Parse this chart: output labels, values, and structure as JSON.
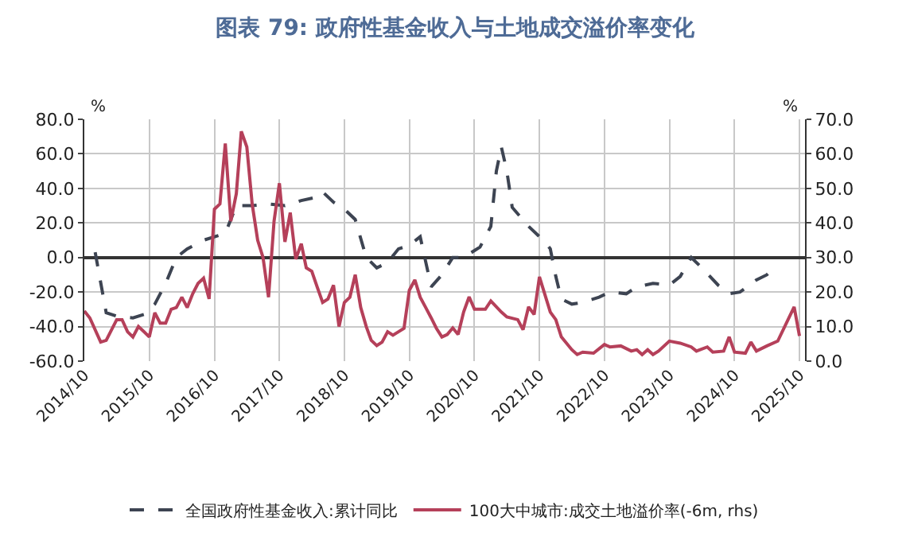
{
  "chart_data": {
    "type": "line",
    "title": "图表 79: 政府性基金收入与土地成交溢价率变化",
    "ylabel": "%",
    "y2label": "%",
    "xlim": [
      "2014-10",
      "2025-11"
    ],
    "xticks": [
      {
        "value": "2014-10",
        "label": "2014/10"
      },
      {
        "value": "2015-10",
        "label": "2015/10"
      },
      {
        "value": "2016-10",
        "label": "2016/10"
      },
      {
        "value": "2017-10",
        "label": "2017/10"
      },
      {
        "value": "2018-10",
        "label": "2018/10"
      },
      {
        "value": "2019-10",
        "label": "2019/10"
      },
      {
        "value": "2020-10",
        "label": "2020/10"
      },
      {
        "value": "2021-10",
        "label": "2021/10"
      },
      {
        "value": "2022-10",
        "label": "2022/10"
      },
      {
        "value": "2023-10",
        "label": "2023/10"
      },
      {
        "value": "2024-10",
        "label": "2024/10"
      },
      {
        "value": "2025-10",
        "label": "2025/10"
      }
    ],
    "ylim": [
      -60,
      80
    ],
    "yticks": [
      {
        "value": -60,
        "label": "-60.0"
      },
      {
        "value": -40,
        "label": "-40.0"
      },
      {
        "value": -20,
        "label": "-20.0"
      },
      {
        "value": 0,
        "label": "0.0"
      },
      {
        "value": 20,
        "label": "20.0"
      },
      {
        "value": 40,
        "label": "40.0"
      },
      {
        "value": 60,
        "label": "60.0"
      },
      {
        "value": 80,
        "label": "80.0"
      }
    ],
    "y2lim": [
      0,
      70
    ],
    "y2ticks": [
      {
        "value": 0,
        "label": "0.0"
      },
      {
        "value": 10,
        "label": "10.0"
      },
      {
        "value": 20,
        "label": "20.0"
      },
      {
        "value": 30,
        "label": "30.0"
      },
      {
        "value": 40,
        "label": "40.0"
      },
      {
        "value": 50,
        "label": "50.0"
      },
      {
        "value": 60,
        "label": "60.0"
      },
      {
        "value": 70,
        "label": "70.0"
      }
    ],
    "grid": true,
    "legend": "bottom",
    "series": [
      {
        "name": "全国政府性基金收入:累计同比",
        "color": "#3d4452",
        "line_style": "dashed",
        "x": [
          "2014-12",
          "2015-02",
          "2015-04",
          "2015-07",
          "2015-09",
          "2015-11",
          "2016-01",
          "2016-03",
          "2016-05",
          "2016-08",
          "2016-12",
          "2017-02",
          "2017-05",
          "2017-08",
          "2017-11",
          "2018-02",
          "2018-05",
          "2018-06",
          "2018-08",
          "2018-10",
          "2018-12",
          "2019-02",
          "2019-04",
          "2019-06",
          "2019-08",
          "2019-10",
          "2019-12",
          "2020-02",
          "2020-04",
          "2020-06",
          "2020-08",
          "2020-10",
          "2020-11",
          "2021-01",
          "2021-02",
          "2021-03",
          "2021-04",
          "2021-05",
          "2021-08",
          "2021-11",
          "2021-12",
          "2022-01",
          "2022-02",
          "2022-04",
          "2022-06",
          "2022-09",
          "2022-11",
          "2023-02",
          "2023-04",
          "2023-07",
          "2023-10",
          "2023-12",
          "2024-02",
          "2024-04",
          "2024-07",
          "2024-09",
          "2024-11",
          "2025-02",
          "2025-04",
          "2025-05"
        ],
        "values": [
          3,
          -32,
          -34,
          -35,
          -33,
          -27,
          -15,
          0,
          5,
          10,
          14,
          30,
          30,
          31,
          30,
          33,
          35,
          38,
          32,
          28,
          22,
          0,
          -6,
          -3,
          5,
          7,
          12,
          -17,
          -10,
          0,
          0,
          4,
          6,
          18,
          50,
          64,
          50,
          29,
          18,
          9,
          5,
          -11,
          -24,
          -27,
          -26,
          -23,
          -20,
          -21,
          -17,
          -15,
          -16,
          -11,
          0,
          -6,
          -16,
          -21,
          -20,
          -13,
          -10,
          -7
        ]
      },
      {
        "name": "100大中城市:成交土地溢价率(-6m, rhs)",
        "color": "#b5405a",
        "line_style": "solid",
        "axis": "y2",
        "x": [
          "2014-10",
          "2014-11",
          "2015-01",
          "2015-02",
          "2015-04",
          "2015-05",
          "2015-06",
          "2015-07",
          "2015-08",
          "2015-09",
          "2015-10",
          "2015-11",
          "2015-12",
          "2016-01",
          "2016-02",
          "2016-03",
          "2016-04",
          "2016-05",
          "2016-06",
          "2016-07",
          "2016-08",
          "2016-09",
          "2016-10",
          "2016-11",
          "2016-12",
          "2017-01",
          "2017-02",
          "2017-03",
          "2017-04",
          "2017-05",
          "2017-06",
          "2017-07",
          "2017-08",
          "2017-09",
          "2017-10",
          "2017-11",
          "2017-12",
          "2018-01",
          "2018-02",
          "2018-03",
          "2018-04",
          "2018-05",
          "2018-06",
          "2018-07",
          "2018-08",
          "2018-09",
          "2018-10",
          "2018-11",
          "2018-12",
          "2019-01",
          "2019-02",
          "2019-03",
          "2019-04",
          "2019-05",
          "2019-06",
          "2019-07",
          "2019-08",
          "2019-09",
          "2019-10",
          "2019-11",
          "2019-12",
          "2020-01",
          "2020-02",
          "2020-03",
          "2020-04",
          "2020-05",
          "2020-06",
          "2020-07",
          "2020-08",
          "2020-09",
          "2020-10",
          "2020-12",
          "2021-01",
          "2021-03",
          "2021-04",
          "2021-06",
          "2021-07",
          "2021-08",
          "2021-09",
          "2021-10",
          "2021-12",
          "2022-01",
          "2022-02",
          "2022-04",
          "2022-05",
          "2022-06",
          "2022-08",
          "2022-10",
          "2022-11",
          "2023-01",
          "2023-03",
          "2023-04",
          "2023-05",
          "2023-06",
          "2023-07",
          "2023-08",
          "2023-10",
          "2023-12",
          "2024-02",
          "2024-03",
          "2024-05",
          "2024-06",
          "2024-08",
          "2024-09",
          "2024-10",
          "2024-12",
          "2025-01",
          "2025-02",
          "2025-04",
          "2025-06",
          "2025-09",
          "2025-10"
        ],
        "values": [
          14.5,
          12.5,
          5.5,
          6,
          12,
          12,
          8.5,
          7,
          10,
          8.5,
          7,
          14,
          11,
          11,
          15,
          15.5,
          18.5,
          15.5,
          19.5,
          22.5,
          24,
          18,
          44,
          45.5,
          63,
          40.5,
          48.5,
          66.5,
          62,
          45.5,
          35,
          30,
          18.5,
          40.5,
          51.5,
          34.5,
          43,
          29.5,
          34,
          27,
          26,
          21.5,
          17,
          18,
          22,
          10,
          17,
          18.5,
          25,
          15.5,
          10,
          6,
          4.5,
          5.5,
          8.5,
          7.5,
          8.5,
          9.5,
          20.5,
          23.5,
          18.5,
          15.5,
          12.5,
          9.5,
          7,
          7.7,
          9.6,
          7.7,
          14.2,
          18.6,
          15,
          15,
          17.4,
          14.2,
          12.8,
          12,
          9.1,
          15.7,
          13.5,
          24.4,
          14.2,
          12,
          7,
          3.3,
          1.9,
          2.6,
          2.3,
          4.8,
          4.1,
          4.4,
          2.9,
          3.3,
          1.9,
          3.3,
          1.9,
          2.9,
          5.8,
          5.2,
          4.1,
          2.9,
          4.1,
          2.6,
          2.9,
          7,
          2.6,
          2.3,
          5.5,
          2.9,
          4.4,
          5.8,
          15.7,
          7.3
        ]
      }
    ]
  }
}
